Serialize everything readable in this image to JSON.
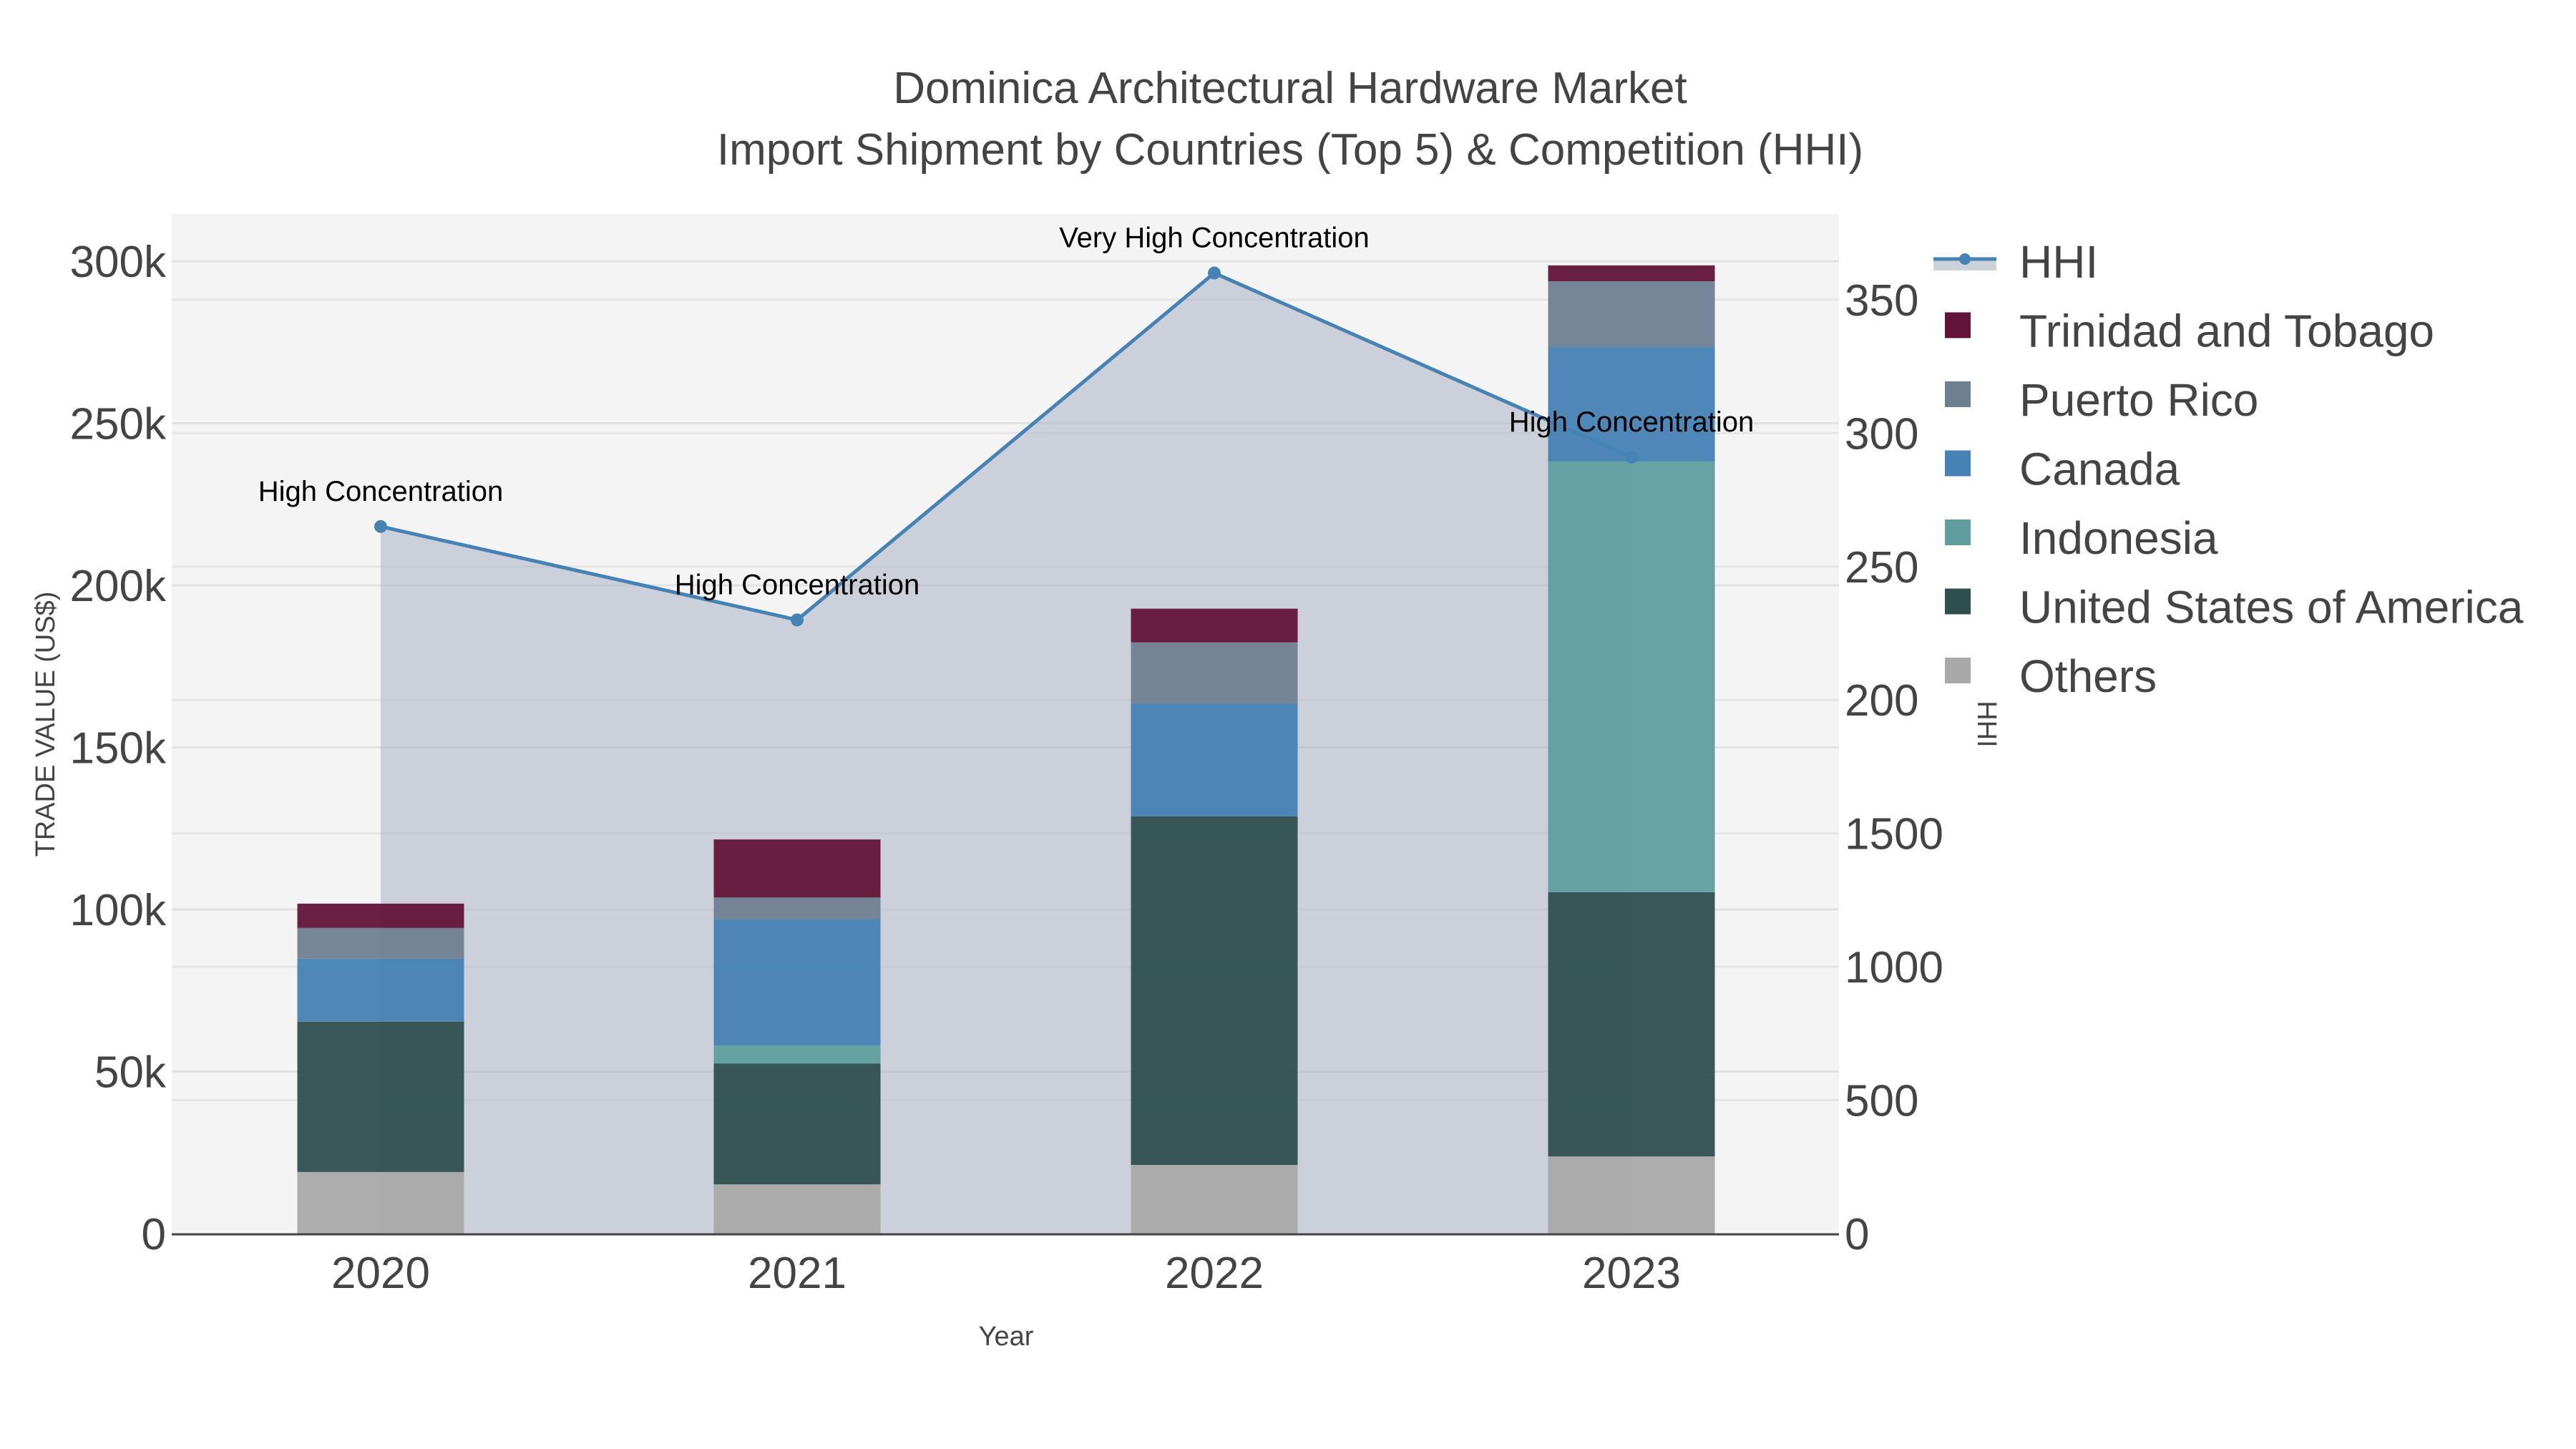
{
  "title": {
    "line1": "Dominica Architectural Hardware Market",
    "line2": "Import Shipment by Countries (Top 5) & Competition (HHI)"
  },
  "axes": {
    "x_title": "Year",
    "y_left_title": "TRADE VALUE (US$)",
    "y_right_title": "HHI",
    "y_left_ticks": [
      "0",
      "50k",
      "100k",
      "150k",
      "200k",
      "250k",
      "300k"
    ],
    "y_right_ticks": [
      "0",
      "500",
      "1000",
      "1500",
      "200",
      "250",
      "300",
      "350"
    ],
    "x_ticks": [
      "2020",
      "2021",
      "2022",
      "2023"
    ]
  },
  "legend": {
    "items": [
      {
        "label": "HHI",
        "color": "#4682b4",
        "kind": "line"
      },
      {
        "label": "Trinidad and Tobago",
        "color": "#621436",
        "kind": "box"
      },
      {
        "label": "Puerto Rico",
        "color": "#6f7f92",
        "kind": "box"
      },
      {
        "label": "Canada",
        "color": "#4682b4",
        "kind": "box"
      },
      {
        "label": "Indonesia",
        "color": "#5f9ea0",
        "kind": "box"
      },
      {
        "label": "United States of America",
        "color": "#2f4f4f",
        "kind": "box"
      },
      {
        "label": "Others",
        "color": "#a9a9a9",
        "kind": "box"
      }
    ]
  },
  "annotations": [
    {
      "year": "2020",
      "text": "High Concentration"
    },
    {
      "year": "2021",
      "text": "High Concentration"
    },
    {
      "year": "2022",
      "text": "Very High Concentration"
    },
    {
      "year": "2023",
      "text": "High Concentration"
    }
  ],
  "chart_data": {
    "type": "bar",
    "title": "Dominica Architectural Hardware Market — Import Shipment by Countries (Top 5) & Competition (HHI)",
    "xlabel": "Year",
    "ylabel": "TRADE VALUE (US$)",
    "y2label": "HHI",
    "ylim": [
      0,
      315000
    ],
    "y2lim": [
      0,
      380
    ],
    "barmode": "stack",
    "grid": true,
    "legend_position": "right",
    "categories": [
      "2020",
      "2021",
      "2022",
      "2023"
    ],
    "series": [
      {
        "name": "Others",
        "color": "#a9a9a9",
        "values": [
          19000,
          15200,
          21200,
          23800
        ]
      },
      {
        "name": "United States of America",
        "color": "#2f4f4f",
        "values": [
          46400,
          37300,
          107500,
          81500
        ]
      },
      {
        "name": "Indonesia",
        "color": "#5f9ea0",
        "values": [
          0,
          5500,
          0,
          132900
        ]
      },
      {
        "name": "Canada",
        "color": "#4682b4",
        "values": [
          19400,
          38900,
          34900,
          35300
        ]
      },
      {
        "name": "Puerto Rico",
        "color": "#6f7f92",
        "values": [
          9500,
          6800,
          18800,
          20300
        ]
      },
      {
        "name": "Trinidad and Tobago",
        "color": "#621436",
        "values": [
          7500,
          17900,
          10400,
          4900
        ]
      }
    ],
    "line_series": {
      "name": "HHI",
      "axis": "right",
      "color": "#4682b4",
      "fill": "tozeroy",
      "values": [
        265,
        230,
        360,
        291
      ],
      "labels": [
        "High Concentration",
        "High Concentration",
        "Very High Concentration",
        "High Concentration"
      ]
    }
  }
}
